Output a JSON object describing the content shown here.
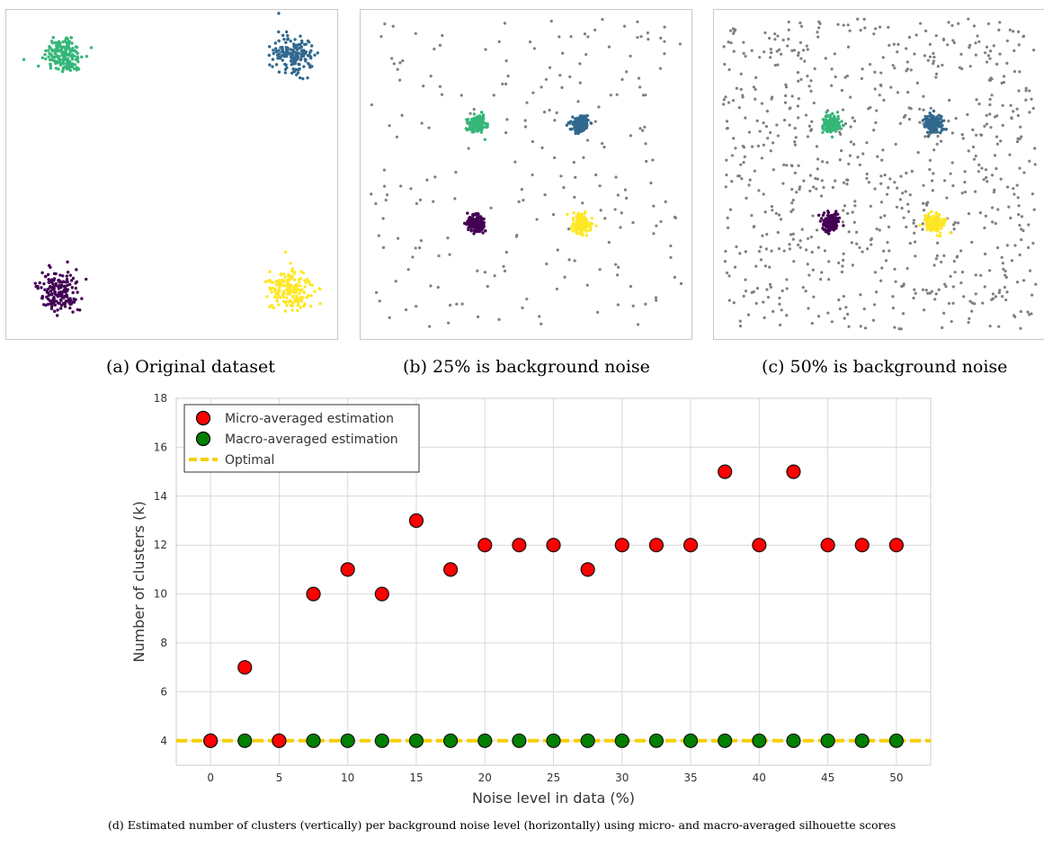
{
  "subfigures": [
    {
      "caption": "(a) Original dataset"
    },
    {
      "caption": "(b) 25% is background noise"
    },
    {
      "caption": "(c) 50% is background noise"
    }
  ],
  "colors": {
    "cluster_green": "#35b779",
    "cluster_blue": "#31688e",
    "cluster_purple": "#440154",
    "cluster_yellow": "#fde725",
    "noise": "#7f7f7f",
    "micro": "#ff0000",
    "macro": "#008000",
    "optimal": "#f5d000"
  },
  "chart_data": {
    "type": "scatter",
    "xlabel": "Noise level in data (%)",
    "ylabel": "Number of clusters (k)",
    "xlim": [
      -2.5,
      52.5
    ],
    "ylim": [
      3,
      18
    ],
    "xticks": [
      0,
      5,
      10,
      15,
      20,
      25,
      30,
      35,
      40,
      45,
      50
    ],
    "yticks": [
      4,
      6,
      8,
      10,
      12,
      14,
      16,
      18
    ],
    "grid": true,
    "legend_position": "top-left",
    "series": [
      {
        "name": "Micro-averaged estimation",
        "marker": "circle",
        "color": "#ff0000",
        "x": [
          0,
          2.5,
          5,
          7.5,
          10,
          12.5,
          15,
          17.5,
          20,
          22.5,
          25,
          27.5,
          30,
          32.5,
          35,
          37.5,
          40,
          42.5,
          45,
          47.5,
          50
        ],
        "y": [
          4,
          7,
          4,
          10,
          11,
          10,
          13,
          11,
          12,
          12,
          12,
          11,
          12,
          12,
          12,
          15,
          12,
          15,
          12,
          12,
          12
        ]
      },
      {
        "name": "Macro-averaged estimation",
        "marker": "circle",
        "color": "#008000",
        "x": [
          0,
          2.5,
          5,
          7.5,
          10,
          12.5,
          15,
          17.5,
          20,
          22.5,
          25,
          27.5,
          30,
          32.5,
          35,
          37.5,
          40,
          42.5,
          45,
          47.5,
          50
        ],
        "y": [
          4,
          4,
          4,
          4,
          4,
          4,
          4,
          4,
          4,
          4,
          4,
          4,
          4,
          4,
          4,
          4,
          4,
          4,
          4,
          4,
          4
        ]
      },
      {
        "name": "Optimal",
        "marker": "dashed-line",
        "color": "#f5d000",
        "y": 4
      }
    ]
  },
  "caption_d": "(d) Estimated number of clusters (vertically) per background noise level (horizontally) using micro- and macro-averaged silhouette scores"
}
